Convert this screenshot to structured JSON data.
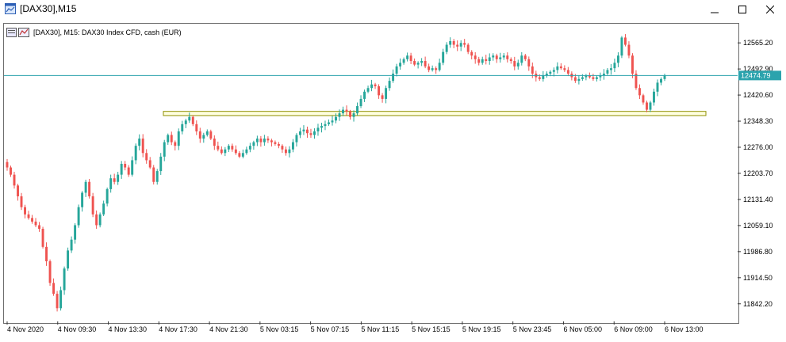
{
  "window": {
    "title": "[DAX30],M15"
  },
  "chart_header": {
    "text": "[DAX30], M15:  DAX30 Index CFD, cash (EUR)"
  },
  "colors": {
    "bull": "#26a69a",
    "bear": "#ef5350",
    "price_line": "#2ba3ad",
    "zone_border": "#8f8f00",
    "zone_fill": "#ffffe0"
  },
  "chart_data": {
    "type": "candlestick",
    "ylim": [
      11800,
      12616
    ],
    "y_ticks": [
      "12565.20",
      "12492.90",
      "12420.60",
      "12348.30",
      "12276.00",
      "12203.70",
      "12131.40",
      "12059.10",
      "11986.80",
      "11914.50",
      "11842.20"
    ],
    "x_ticks": [
      "4 Nov 2020",
      "4 Nov 09:30",
      "4 Nov 13:30",
      "4 Nov 17:30",
      "4 Nov 21:30",
      "5 Nov 03:15",
      "5 Nov 07:15",
      "5 Nov 11:15",
      "5 Nov 15:15",
      "5 Nov 19:15",
      "5 Nov 23:45",
      "6 Nov 05:00",
      "6 Nov 09:00",
      "6 Nov 13:00"
    ],
    "current_price": 12474.79,
    "current_price_label": "12474.79",
    "support_zone": {
      "low": 12366,
      "high": 12371
    },
    "closes": [
      12220,
      12200,
      12170,
      12140,
      12110,
      12090,
      12080,
      12070,
      12060,
      12050,
      12000,
      11960,
      11900,
      11870,
      11830,
      11880,
      11940,
      11990,
      12020,
      12060,
      12110,
      12150,
      12180,
      12140,
      12090,
      12060,
      12090,
      12120,
      12160,
      12190,
      12180,
      12200,
      12230,
      12220,
      12200,
      12240,
      12280,
      12300,
      12260,
      12240,
      12220,
      12180,
      12210,
      12250,
      12290,
      12310,
      12290,
      12280,
      12320,
      12340,
      12350,
      12360,
      12340,
      12320,
      12300,
      12310,
      12320,
      12300,
      12280,
      12270,
      12260,
      12270,
      12280,
      12270,
      12260,
      12250,
      12260,
      12270,
      12280,
      12290,
      12300,
      12290,
      12300,
      12295,
      12290,
      12285,
      12280,
      12270,
      12260,
      12270,
      12290,
      12310,
      12320,
      12325,
      12315,
      12310,
      12320,
      12330,
      12335,
      12340,
      12345,
      12350,
      12360,
      12370,
      12380,
      12375,
      12360,
      12370,
      12390,
      12410,
      12430,
      12440,
      12450,
      12445,
      12420,
      12410,
      12440,
      12460,
      12480,
      12500,
      12510,
      12520,
      12530,
      12515,
      12505,
      12510,
      12515,
      12500,
      12490,
      12495,
      12490,
      12510,
      12540,
      12560,
      12570,
      12560,
      12555,
      12565,
      12560,
      12540,
      12530,
      12520,
      12510,
      12520,
      12515,
      12525,
      12530,
      12520,
      12525,
      12530,
      12520,
      12515,
      12500,
      12510,
      12530,
      12520,
      12500,
      12480,
      12470,
      12465,
      12475,
      12480,
      12485,
      12490,
      12500,
      12495,
      12490,
      12480,
      12470,
      12460,
      12465,
      12470,
      12475,
      12470,
      12465,
      12470,
      12475,
      12480,
      12490,
      12495,
      12510,
      12530,
      12580,
      12560,
      12530,
      12480,
      12440,
      12420,
      12400,
      12380,
      12400,
      12430,
      12455,
      12465,
      12475
    ]
  }
}
